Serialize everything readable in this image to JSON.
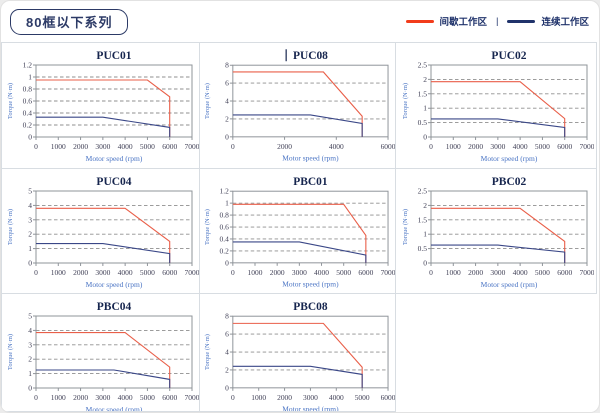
{
  "header": {
    "title": "80框以下系列",
    "legend": {
      "items": [
        {
          "label": "间歇工作区",
          "color": "#f23c1b"
        },
        {
          "label": "连续工作区",
          "color": "#20336b"
        }
      ],
      "separator": "|"
    }
  },
  "colors": {
    "intermittent_line": "#e95f49",
    "continuous_line": "#3a4787",
    "plot_border": "#8f949a",
    "gridline": "#8f8f8f",
    "tick_text": "#3f3f55",
    "title_text": "#16254e",
    "axis_label_text": "#4a74c4",
    "grid_border": "#d8dde2",
    "badge_border": "#2c3a66"
  },
  "chart_data": [
    {
      "type": "line",
      "title": "PUC01",
      "cursor_before_title": false,
      "xlabel": "Motor speed (rpm)",
      "ylabel": "Torque (N·m)",
      "xlim": [
        0,
        7000
      ],
      "ylim": [
        0,
        1.2
      ],
      "xticks": [
        0,
        1000,
        2000,
        3000,
        4000,
        5000,
        6000,
        7000
      ],
      "yticks": [
        0,
        0.2,
        0.4,
        0.6,
        0.8,
        1,
        1.2
      ],
      "grid": "horizontal-dashed",
      "legend_position": "none",
      "series": [
        {
          "name": "间歇工作区",
          "role": "intermittent",
          "points": [
            [
              0,
              0.95
            ],
            [
              5000,
              0.95
            ],
            [
              6000,
              0.67
            ],
            [
              6000,
              0
            ]
          ]
        },
        {
          "name": "连续工作区",
          "role": "continuous",
          "points": [
            [
              0,
              0.33
            ],
            [
              3000,
              0.33
            ],
            [
              6000,
              0.16
            ],
            [
              6000,
              0
            ]
          ]
        }
      ]
    },
    {
      "type": "line",
      "title": "PUC08",
      "cursor_before_title": true,
      "xlabel": "Motor speed (rpm)",
      "ylabel": "Torque (N·m)",
      "xlim": [
        0,
        6000
      ],
      "ylim": [
        0,
        8
      ],
      "xticks": [
        0,
        2000,
        4000,
        6000
      ],
      "yticks": [
        0,
        2,
        4,
        6,
        8
      ],
      "grid": "horizontal-dashed",
      "legend_position": "none",
      "series": [
        {
          "name": "间歇工作区",
          "role": "intermittent",
          "points": [
            [
              0,
              7.25
            ],
            [
              3500,
              7.25
            ],
            [
              5000,
              2.3
            ],
            [
              5000,
              0
            ]
          ]
        },
        {
          "name": "连续工作区",
          "role": "continuous",
          "points": [
            [
              0,
              2.45
            ],
            [
              3000,
              2.45
            ],
            [
              5000,
              1.5
            ],
            [
              5000,
              0
            ]
          ]
        }
      ]
    },
    {
      "type": "line",
      "title": "PUC02",
      "cursor_before_title": false,
      "xlabel": "Motor speed (rpm)",
      "ylabel": "Torque (N·m)",
      "xlim": [
        0,
        7000
      ],
      "ylim": [
        0,
        2.5
      ],
      "xticks": [
        0,
        1000,
        2000,
        3000,
        4000,
        5000,
        6000,
        7000
      ],
      "yticks": [
        0,
        0.5,
        1,
        1.5,
        2,
        2.5
      ],
      "grid": "horizontal-dashed",
      "legend_position": "none",
      "series": [
        {
          "name": "间歇工作区",
          "role": "intermittent",
          "points": [
            [
              0,
              1.92
            ],
            [
              4000,
              1.92
            ],
            [
              6000,
              0.64
            ],
            [
              6000,
              0
            ]
          ]
        },
        {
          "name": "连续工作区",
          "role": "continuous",
          "points": [
            [
              0,
              0.63
            ],
            [
              3000,
              0.63
            ],
            [
              6000,
              0.33
            ],
            [
              6000,
              0
            ]
          ]
        }
      ]
    },
    {
      "type": "line",
      "title": "PUC04",
      "cursor_before_title": false,
      "xlabel": "Motor speed (rpm)",
      "ylabel": "Torque (N·m)",
      "xlim": [
        0,
        7000
      ],
      "ylim": [
        0,
        5
      ],
      "xticks": [
        0,
        1000,
        2000,
        3000,
        4000,
        5000,
        6000,
        7000
      ],
      "yticks": [
        0,
        1,
        2,
        3,
        4,
        5
      ],
      "grid": "horizontal-dashed",
      "legend_position": "none",
      "series": [
        {
          "name": "间歇工作区",
          "role": "intermittent",
          "points": [
            [
              0,
              3.8
            ],
            [
              4000,
              3.8
            ],
            [
              6000,
              1.5
            ],
            [
              6000,
              0
            ]
          ]
        },
        {
          "name": "连续工作区",
          "role": "continuous",
          "points": [
            [
              0,
              1.35
            ],
            [
              3000,
              1.35
            ],
            [
              6000,
              0.65
            ],
            [
              6000,
              0
            ]
          ]
        }
      ]
    },
    {
      "type": "line",
      "title": "PBC01",
      "cursor_before_title": false,
      "xlabel": "Motor speed (rpm)",
      "ylabel": "Torque (N·m)",
      "xlim": [
        0,
        7000
      ],
      "ylim": [
        0,
        1.2
      ],
      "xticks": [
        0,
        1000,
        2000,
        3000,
        4000,
        5000,
        6000,
        7000
      ],
      "yticks": [
        0,
        0.2,
        0.4,
        0.6,
        0.8,
        1,
        1.2
      ],
      "grid": "horizontal-dashed",
      "legend_position": "none",
      "series": [
        {
          "name": "间歇工作区",
          "role": "intermittent",
          "points": [
            [
              0,
              0.98
            ],
            [
              5000,
              0.98
            ],
            [
              6000,
              0.46
            ],
            [
              6000,
              0
            ]
          ]
        },
        {
          "name": "连续工作区",
          "role": "continuous",
          "points": [
            [
              0,
              0.35
            ],
            [
              3000,
              0.35
            ],
            [
              6000,
              0.13
            ],
            [
              6000,
              0
            ]
          ]
        }
      ]
    },
    {
      "type": "line",
      "title": "PBC02",
      "cursor_before_title": false,
      "xlabel": "Motor speed (rpm)",
      "ylabel": "Torque (N·m)",
      "xlim": [
        0,
        7000
      ],
      "ylim": [
        0,
        2.5
      ],
      "xticks": [
        0,
        1000,
        2000,
        3000,
        4000,
        5000,
        6000,
        7000
      ],
      "yticks": [
        0,
        0.5,
        1,
        1.5,
        2,
        2.5
      ],
      "grid": "horizontal-dashed",
      "legend_position": "none",
      "series": [
        {
          "name": "间歇工作区",
          "role": "intermittent",
          "points": [
            [
              0,
              1.9
            ],
            [
              4000,
              1.9
            ],
            [
              6000,
              0.75
            ],
            [
              6000,
              0
            ]
          ]
        },
        {
          "name": "连续工作区",
          "role": "continuous",
          "points": [
            [
              0,
              0.62
            ],
            [
              3000,
              0.62
            ],
            [
              6000,
              0.38
            ],
            [
              6000,
              0
            ]
          ]
        }
      ]
    },
    {
      "type": "line",
      "title": "PBC04",
      "cursor_before_title": false,
      "xlabel": "Motor speed (rpm)",
      "ylabel": "Torque (N·m)",
      "xlim": [
        0,
        7000
      ],
      "ylim": [
        0,
        5
      ],
      "xticks": [
        0,
        1000,
        2000,
        3000,
        4000,
        5000,
        6000,
        7000
      ],
      "yticks": [
        0,
        1,
        2,
        3,
        4,
        5
      ],
      "grid": "horizontal-dashed",
      "legend_position": "none",
      "series": [
        {
          "name": "间歇工作区",
          "role": "intermittent",
          "points": [
            [
              0,
              3.85
            ],
            [
              4000,
              3.85
            ],
            [
              6000,
              1.45
            ],
            [
              6000,
              0
            ]
          ]
        },
        {
          "name": "连续工作区",
          "role": "continuous",
          "points": [
            [
              0,
              1.25
            ],
            [
              3500,
              1.25
            ],
            [
              6000,
              0.6
            ],
            [
              6000,
              0
            ]
          ]
        }
      ]
    },
    {
      "type": "line",
      "title": "PBC08",
      "cursor_before_title": false,
      "xlabel": "Motor speed (rpm)",
      "ylabel": "Torque (N·m)",
      "xlim": [
        0,
        6000
      ],
      "ylim": [
        0,
        8
      ],
      "xticks": [
        0,
        1000,
        2000,
        3000,
        4000,
        5000,
        6000
      ],
      "yticks": [
        0,
        2,
        4,
        6,
        8
      ],
      "grid": "horizontal-dashed",
      "legend_position": "none",
      "series": [
        {
          "name": "间歇工作区",
          "role": "intermittent",
          "points": [
            [
              0,
              7.2
            ],
            [
              3500,
              7.2
            ],
            [
              5000,
              2.3
            ],
            [
              5000,
              0
            ]
          ]
        },
        {
          "name": "连续工作区",
          "role": "continuous",
          "points": [
            [
              0,
              2.4
            ],
            [
              3000,
              2.4
            ],
            [
              5000,
              1.5
            ],
            [
              5000,
              0
            ]
          ]
        }
      ]
    }
  ]
}
